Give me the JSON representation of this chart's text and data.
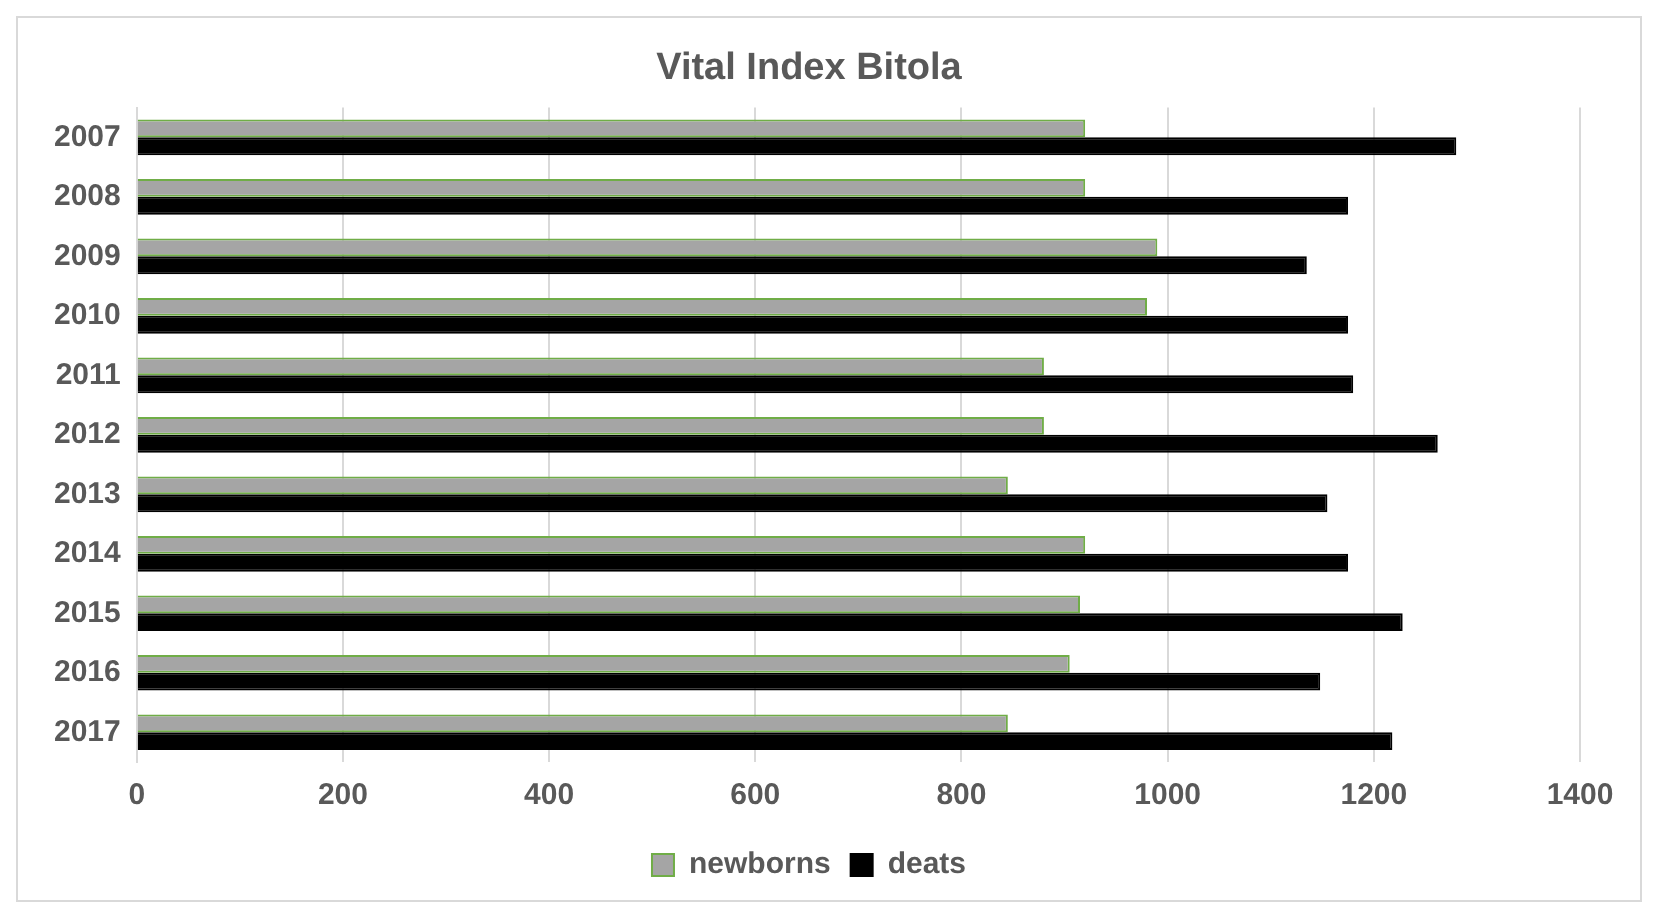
{
  "chart_data": {
    "type": "bar",
    "orientation": "horizontal",
    "title": "Vital Index Bitola",
    "categories": [
      "2007",
      "2008",
      "2009",
      "2010",
      "2011",
      "2012",
      "2013",
      "2014",
      "2015",
      "2016",
      "2017"
    ],
    "series": [
      {
        "name": "newborns",
        "color": "#a5a5a5",
        "values": [
          920,
          920,
          990,
          980,
          880,
          880,
          845,
          920,
          915,
          905,
          845
        ]
      },
      {
        "name": "deats",
        "color": "#000000",
        "values": [
          1280,
          1175,
          1135,
          1175,
          1180,
          1262,
          1155,
          1175,
          1228,
          1148,
          1218
        ]
      }
    ],
    "xlim": [
      0,
      1400
    ],
    "xticks": [
      0,
      200,
      400,
      600,
      800,
      1000,
      1200,
      1400
    ],
    "grid": "x",
    "legend": "bottom"
  }
}
